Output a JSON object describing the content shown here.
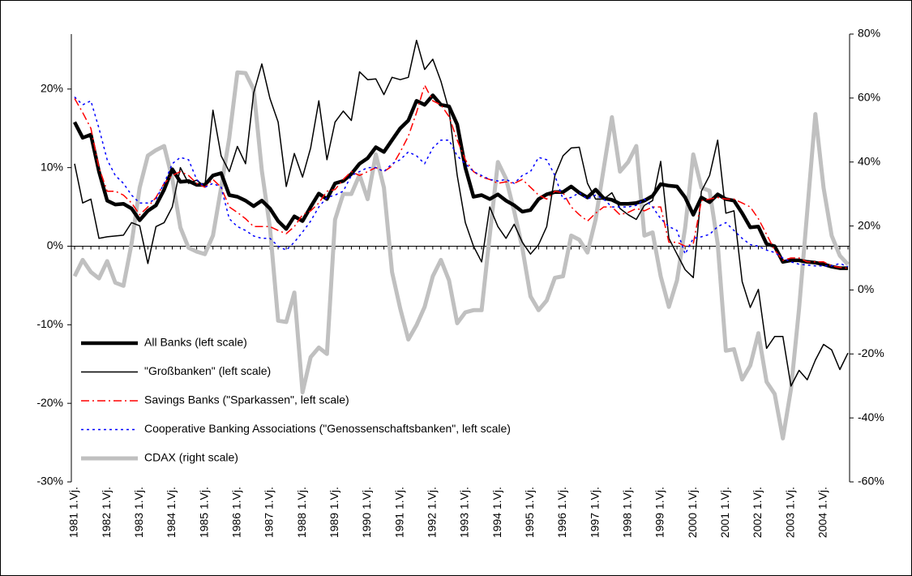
{
  "chart_data": {
    "type": "line",
    "categories": [
      "1981 1.Vj.",
      null,
      null,
      null,
      "1982 1.Vj.",
      null,
      null,
      null,
      "1983 1.Vj.",
      null,
      null,
      null,
      "1984 1.Vj.",
      null,
      null,
      null,
      "1985 1.Vj.",
      null,
      null,
      null,
      "1986 1.Vj.",
      null,
      null,
      null,
      "1987 1.Vj.",
      null,
      null,
      null,
      "1988 1.Vj.",
      null,
      null,
      null,
      "1989 1.Vj.",
      null,
      null,
      null,
      "1990 1.Vj.",
      null,
      null,
      null,
      "1991 1.Vj.",
      null,
      null,
      null,
      "1992 1.Vj.",
      null,
      null,
      null,
      "1993 1.Vj.",
      null,
      null,
      null,
      "1994 1.Vj.",
      null,
      null,
      null,
      "1995 1.Vj.",
      null,
      null,
      null,
      "1996 1.Vj.",
      null,
      null,
      null,
      "1997 1.Vj.",
      null,
      null,
      null,
      "1998 1.Vj.",
      null,
      null,
      null,
      "1999 1.Vj.",
      null,
      null,
      null,
      "2000 1.Vj.",
      null,
      null,
      null,
      "2001 1.Vj.",
      null,
      null,
      null,
      "2002 1.Vj.",
      null,
      null,
      null,
      "2003 1.Vj.",
      null,
      null,
      null,
      "2004 1.Vj.",
      null,
      null,
      null
    ],
    "series": [
      {
        "name": "All Banks (left scale)",
        "color": "#000000",
        "width": "thick",
        "dash": "solid",
        "values": [
          15.8,
          13.8,
          14.2,
          9.5,
          5.8,
          5.3,
          5.4,
          4.8,
          3.3,
          4.5,
          5.2,
          7.2,
          9.8,
          8.2,
          8.3,
          7.8,
          7.8,
          9.0,
          9.3,
          6.5,
          6.3,
          5.8,
          5.1,
          5.8,
          4.8,
          3.2,
          2.2,
          3.8,
          3.2,
          5.0,
          6.7,
          6.0,
          8.0,
          8.3,
          9.2,
          10.5,
          11.2,
          12.6,
          12.0,
          13.5,
          15.0,
          16.0,
          18.5,
          18.0,
          19.2,
          18.0,
          17.8,
          15.5,
          10.0,
          6.3,
          6.5,
          6.0,
          6.6,
          5.8,
          5.2,
          4.4,
          4.6,
          6.0,
          6.6,
          6.9,
          6.9,
          7.6,
          6.8,
          6.2,
          7.2,
          6.1,
          5.9,
          5.4,
          5.4,
          5.5,
          5.8,
          6.4,
          7.9,
          7.7,
          7.6,
          6.2,
          4.0,
          6.2,
          5.6,
          6.6,
          6.0,
          5.8,
          4.2,
          2.4,
          2.5,
          0.3,
          0.0,
          -2.0,
          -1.8,
          -1.8,
          -2.0,
          -2.1,
          -2.3,
          -2.6,
          -2.8,
          -2.8
        ]
      },
      {
        "name": "\"Großbanken\" (left scale)",
        "color": "#000000",
        "width": "thin",
        "dash": "solid",
        "values": [
          10.5,
          5.5,
          6.0,
          1.0,
          1.2,
          1.3,
          1.4,
          3.0,
          2.6,
          -2.2,
          2.5,
          3.0,
          5.0,
          10.0,
          8.0,
          8.4,
          7.6,
          17.3,
          11.5,
          9.5,
          12.7,
          10.5,
          19.5,
          23.2,
          18.8,
          15.8,
          7.6,
          11.8,
          8.8,
          12.5,
          18.5,
          11.0,
          15.8,
          17.2,
          16.0,
          22.2,
          21.2,
          21.3,
          19.3,
          21.5,
          21.2,
          21.5,
          26.2,
          22.5,
          23.8,
          21.0,
          17.3,
          9.0,
          3.0,
          0.0,
          -2.0,
          5.0,
          2.5,
          1.0,
          2.8,
          0.5,
          -1.0,
          0.2,
          2.5,
          9.0,
          11.5,
          12.5,
          12.6,
          8.0,
          6.0,
          6.0,
          6.8,
          4.8,
          4.0,
          3.4,
          5.2,
          5.8,
          10.8,
          1.0,
          -1.0,
          -3.0,
          -4.0,
          7.0,
          9.0,
          13.5,
          4.2,
          4.5,
          -4.5,
          -7.8,
          -5.5,
          -13.0,
          -11.5,
          -11.5,
          -17.8,
          -15.8,
          -17.0,
          -14.5,
          -12.5,
          -13.2,
          -15.7,
          -13.6
        ]
      },
      {
        "name": "Savings Banks (\"Sparkassen\", left scale)",
        "color": "#ff0000",
        "width": "thin",
        "dash": "dashdot",
        "values": [
          18.8,
          17.0,
          15.0,
          10.0,
          7.0,
          7.0,
          6.5,
          5.5,
          4.0,
          5.0,
          6.2,
          8.0,
          9.0,
          9.5,
          9.0,
          8.0,
          7.5,
          8.5,
          7.5,
          5.0,
          4.3,
          3.5,
          2.5,
          2.5,
          2.5,
          2.0,
          1.6,
          2.5,
          4.0,
          4.5,
          5.5,
          7.0,
          7.2,
          8.5,
          9.5,
          9.0,
          9.5,
          10.0,
          9.5,
          10.2,
          12.0,
          14.0,
          17.0,
          20.5,
          18.5,
          18.0,
          16.5,
          13.5,
          11.0,
          9.5,
          8.8,
          8.5,
          8.0,
          8.2,
          8.0,
          8.5,
          7.5,
          6.5,
          6.0,
          7.0,
          6.8,
          5.0,
          4.0,
          3.2,
          4.2,
          5.0,
          5.0,
          4.0,
          4.3,
          4.8,
          4.5,
          5.0,
          5.0,
          0.5,
          0.5,
          0.0,
          0.3,
          5.8,
          6.0,
          6.2,
          6.0,
          6.0,
          5.5,
          5.0,
          3.5,
          1.5,
          -0.5,
          -1.8,
          -1.5,
          -1.5,
          -2.0,
          -2.0,
          -2.0,
          -2.5,
          -2.7,
          -2.8
        ]
      },
      {
        "name": "Cooperative Banking Associations (\"Genossenschaftsbanken\", left scale)",
        "color": "#0000ff",
        "width": "thin",
        "dash": "dotted",
        "values": [
          19.0,
          18.0,
          18.5,
          15.0,
          11.0,
          9.0,
          8.0,
          6.5,
          5.5,
          5.5,
          6.0,
          8.0,
          10.5,
          11.3,
          11.0,
          8.5,
          7.5,
          8.0,
          7.5,
          3.5,
          2.5,
          2.0,
          1.3,
          1.0,
          1.0,
          0.0,
          -0.5,
          0.5,
          1.8,
          3.2,
          5.0,
          6.2,
          6.5,
          7.0,
          9.0,
          9.5,
          10.0,
          10.0,
          9.5,
          10.5,
          11.0,
          12.0,
          11.5,
          10.5,
          12.5,
          13.5,
          13.5,
          11.5,
          10.5,
          9.5,
          9.0,
          8.5,
          8.3,
          8.5,
          8.0,
          9.0,
          9.5,
          11.3,
          11.0,
          9.0,
          6.0,
          6.2,
          6.8,
          6.0,
          6.5,
          6.0,
          5.0,
          5.0,
          5.0,
          5.2,
          6.0,
          5.0,
          3.5,
          2.5,
          2.0,
          -1.0,
          1.0,
          1.2,
          1.5,
          2.5,
          3.0,
          2.0,
          1.0,
          0.2,
          0.0,
          -0.5,
          -0.8,
          -1.5,
          -2.0,
          -2.3,
          -2.4,
          -2.5,
          -2.5,
          -2.5,
          -2.2,
          -2.6
        ]
      },
      {
        "name": "CDAX (right scale)",
        "color": "#c0c0c0",
        "width": "thick",
        "dash": "solid",
        "axis": "y2",
        "values": [
          4.3,
          9.4,
          5.6,
          3.6,
          9,
          2.3,
          1.3,
          14.5,
          32,
          42,
          43.7,
          45,
          34.8,
          19.5,
          13.2,
          12,
          11.2,
          17,
          32,
          47.5,
          68,
          67.8,
          62.7,
          37.3,
          19.5,
          -9.6,
          -10,
          -0.8,
          -32,
          -21,
          -18,
          -20,
          22,
          30,
          30,
          36,
          28.4,
          42.4,
          32,
          5.6,
          -5.8,
          -15.5,
          -11,
          -5.3,
          4.3,
          9.4,
          3,
          -10.4,
          -7,
          -6.3,
          -6.3,
          17,
          40,
          34.8,
          24.6,
          13.2,
          -2,
          -6.3,
          -3.3,
          3.8,
          4.3,
          17,
          15.7,
          11.7,
          22,
          38,
          54,
          37,
          40,
          45,
          17,
          18,
          4.3,
          -5.3,
          3,
          19.5,
          42.4,
          32,
          31,
          14.5,
          -19,
          -18.5,
          -28,
          -23.6,
          -13.5,
          -28.7,
          -32.5,
          -46.4,
          -31,
          -5.8,
          24.6,
          55,
          32,
          17,
          10.7,
          8
        ]
      }
    ],
    "ylim": [
      -30,
      27
    ],
    "yticks": [
      {
        "value": -30,
        "label": "-30%"
      },
      {
        "value": -20,
        "label": "-20%"
      },
      {
        "value": -10,
        "label": "-10%"
      },
      {
        "value": 0,
        "label": "0%"
      },
      {
        "value": 10,
        "label": "10%"
      },
      {
        "value": 20,
        "label": "20%"
      }
    ],
    "y2lim": [
      -60,
      80
    ],
    "y2ticks": [
      {
        "value": -60,
        "label": "-60%"
      },
      {
        "value": -40,
        "label": "-40%"
      },
      {
        "value": -20,
        "label": "-20%"
      },
      {
        "value": 0,
        "label": "0%"
      },
      {
        "value": 20,
        "label": "20%"
      },
      {
        "value": 40,
        "label": "40%"
      },
      {
        "value": 60,
        "label": "60%"
      },
      {
        "value": 80,
        "label": "80%"
      }
    ],
    "legend": "lower left",
    "grid": false
  }
}
